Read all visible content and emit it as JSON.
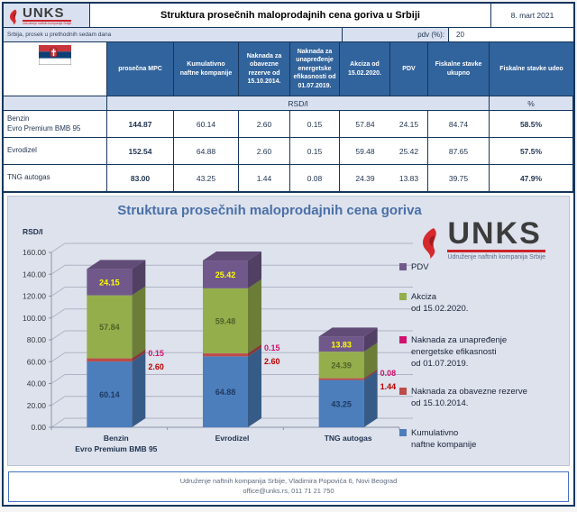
{
  "logo": {
    "brand": "UNKS",
    "tagline": "Udruženje naftnih kompanija Srbije"
  },
  "header": {
    "title": "Struktura prosečnih maloprodajnih cena goriva u Srbiji",
    "date": "8. mart 2021",
    "subtitle": "Srbija, prosek u prethodnih sedam dana",
    "pdv_label": "pdv (%):",
    "pdv_value": "20"
  },
  "table": {
    "columns": [
      "prosečna MPC",
      "Kumulativno naftne kompanije",
      "Naknada za obavezne rezerve od 15.10.2014.",
      "Naknada za unapređenje energetske efikasnosti od 01.07.2019.",
      "Akciza od 15.02.2020.",
      "PDV",
      "Fiskalne stavke ukupno",
      "Fiskalne stavke udeo"
    ],
    "unit_rsd": "RSD/l",
    "unit_pct": "%",
    "rows": [
      {
        "label": "Benzin\nEvro Premium BMB 95",
        "values": [
          "144.87",
          "60.14",
          "2.60",
          "0.15",
          "57.84",
          "24.15",
          "84.74",
          "58.5%"
        ]
      },
      {
        "label": "Evrodizel",
        "values": [
          "152.54",
          "64.88",
          "2.60",
          "0.15",
          "59.48",
          "25.42",
          "87.65",
          "57.5%"
        ]
      },
      {
        "label": "TNG autogas",
        "values": [
          "83.00",
          "43.25",
          "1.44",
          "0.08",
          "24.39",
          "13.83",
          "39.75",
          "47.9%"
        ]
      }
    ]
  },
  "chart_data": {
    "type": "bar",
    "stacked": true,
    "effect_3d": true,
    "title": "Struktura prosečnih maloprodajnih cena goriva",
    "ylabel": "RSD/l",
    "ylim": [
      0,
      160
    ],
    "ytick_step": 20,
    "grid": true,
    "legend_position": "right",
    "categories": [
      "Benzin\nEvro Premium BMB 95",
      "Evrodizel",
      "TNG autogas"
    ],
    "series": [
      {
        "name": "Kumulativno naftne kompanije",
        "color": "#4C7EBC",
        "label_color": "#203A60",
        "label_pos": "inside",
        "values": [
          60.14,
          64.88,
          43.25
        ]
      },
      {
        "name": "Naknada za obavezne rezerve od 15.10.2014.",
        "color": "#BE4B48",
        "label_color": "#C00000",
        "label_pos": "side",
        "values": [
          2.6,
          2.6,
          1.44
        ]
      },
      {
        "name": "Naknada za unapređenje energetske efikasnosti od 01.07.2019.",
        "color": "#D0126E",
        "label_color": "#D0126E",
        "label_pos": "side",
        "values": [
          0.15,
          0.15,
          0.08
        ]
      },
      {
        "name": "Akciza od 15.02.2020.",
        "color": "#95AE4C",
        "label_color": "#4F6228",
        "label_pos": "inside",
        "values": [
          57.84,
          59.48,
          24.39
        ]
      },
      {
        "name": "PDV",
        "color": "#71588B",
        "label_color": "#FFFF00",
        "label_pos": "inside",
        "values": [
          24.15,
          25.42,
          13.83
        ]
      }
    ],
    "legend_items": [
      {
        "label_lines": [
          "PDV"
        ],
        "color": "#71588B"
      },
      {
        "label_lines": [
          "Akciza",
          "od 15.02.2020."
        ],
        "color": "#95AE4C"
      },
      {
        "label_lines": [
          "Naknada za unapređenje",
          "energetske efikasnosti",
          "od 01.07.2019."
        ],
        "color": "#D0126E"
      },
      {
        "label_lines": [
          "Naknada za obavezne rezerve",
          "od 15.10.2014."
        ],
        "color": "#BE4B48"
      },
      {
        "label_lines": [
          "Kumulativno",
          "naftne kompanije"
        ],
        "color": "#4C7EBC"
      }
    ]
  },
  "footer": {
    "line1": "Udruženje naftnih kompanija Srbije, Vladimira Popovića 6, Novi Beograd",
    "line2": "office@unks.rs, 011 71 21 750"
  }
}
